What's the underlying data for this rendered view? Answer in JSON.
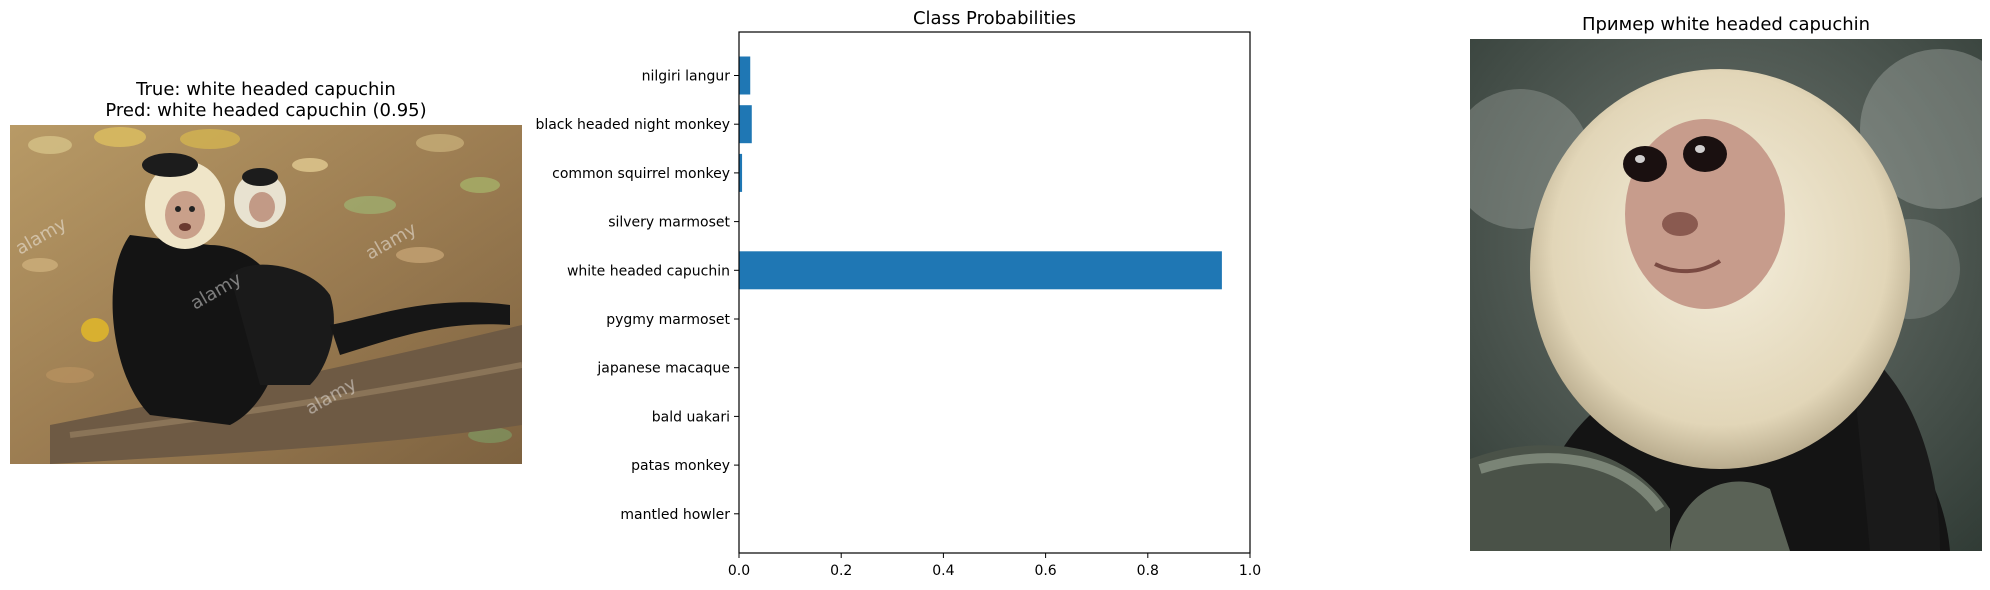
{
  "left_panel": {
    "true_label": "True: white headed capuchin",
    "pred_label": "Pred: white headed capuchin (0.95)",
    "watermark": "alamy"
  },
  "right_panel": {
    "title": "Пример white headed capuchin"
  },
  "chart_data": {
    "type": "bar",
    "orientation": "horizontal",
    "title": "Class Probabilities",
    "xlabel": "",
    "ylabel": "",
    "xlim": [
      0,
      1
    ],
    "xticks": [
      "0.0",
      "0.2",
      "0.4",
      "0.6",
      "0.8",
      "1.0"
    ],
    "categories": [
      "nilgiri langur",
      "black headed night monkey",
      "common squirrel monkey",
      "silvery marmoset",
      "white headed capuchin",
      "pygmy marmoset",
      "japanese macaque",
      "bald uakari",
      "patas monkey",
      "mantled howler"
    ],
    "values": [
      0.022,
      0.025,
      0.006,
      0.0,
      0.945,
      0.0,
      0.0,
      0.0,
      0.0,
      0.0
    ],
    "bar_color": "#1f77b4",
    "grid": false,
    "legend": "none"
  }
}
